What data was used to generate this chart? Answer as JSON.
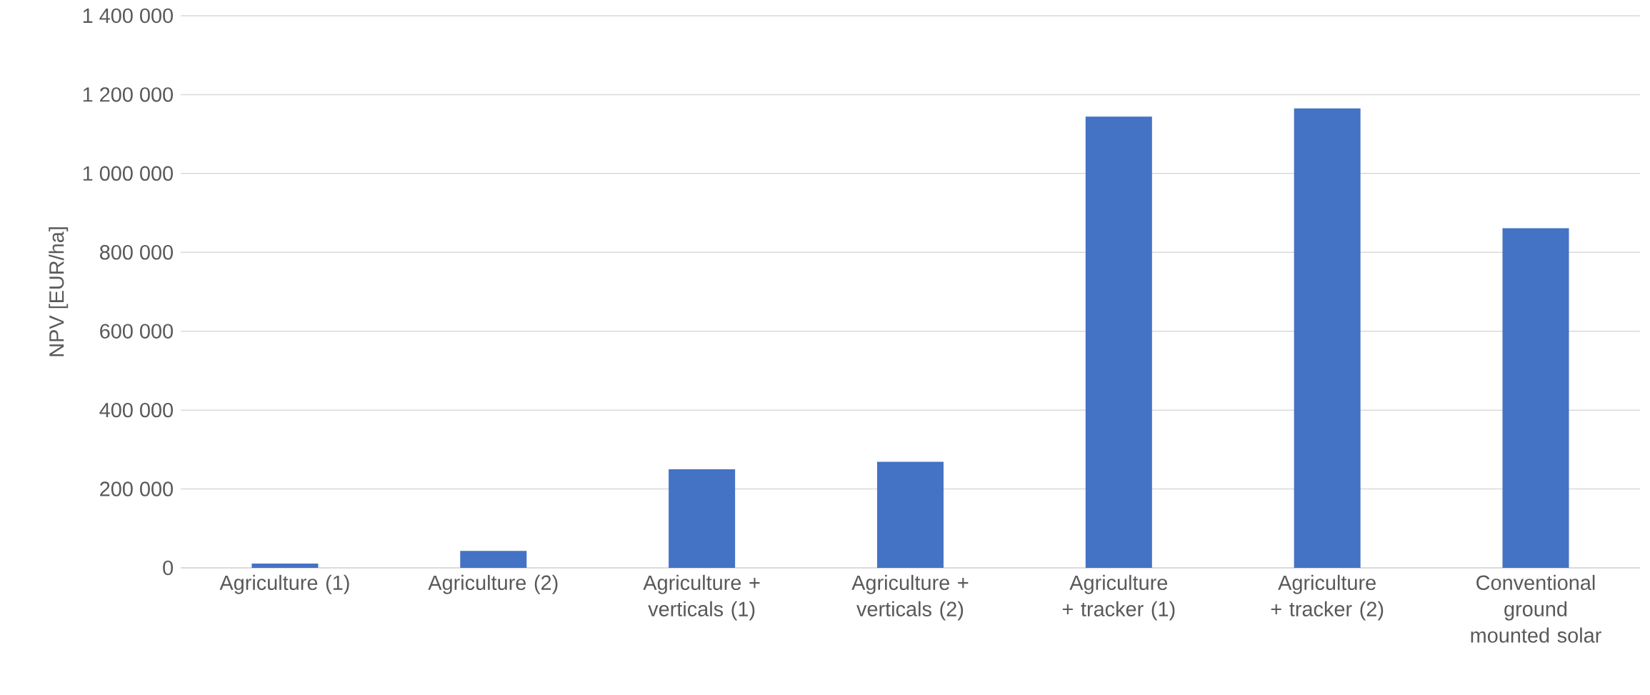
{
  "chart_data": {
    "type": "bar",
    "ylabel": "NPV [EUR/ha]",
    "categories": [
      "Agriculture (1)",
      "Agriculture (2)",
      "Agriculture + verticals (1)",
      "Agriculture + verticals (2)",
      "Agriculture + tracker (1)",
      "Agriculture + tracker (2)",
      "Conventional ground mounted solar"
    ],
    "values": [
      11000,
      43000,
      250000,
      269000,
      1144000,
      1165000,
      861000
    ],
    "color": "#4472c4",
    "ylim": [
      0,
      1400000
    ],
    "yticks": [
      {
        "value": 0,
        "label": "0"
      },
      {
        "value": 200000,
        "label": "200 000"
      },
      {
        "value": 400000,
        "label": "400 000"
      },
      {
        "value": 600000,
        "label": "600 000"
      },
      {
        "value": 800000,
        "label": "800 000"
      },
      {
        "value": 1000000,
        "label": "1 000 000"
      },
      {
        "value": 1200000,
        "label": "1 200 000"
      },
      {
        "value": 1400000,
        "label": "1 400 000"
      }
    ],
    "grid": "y"
  }
}
